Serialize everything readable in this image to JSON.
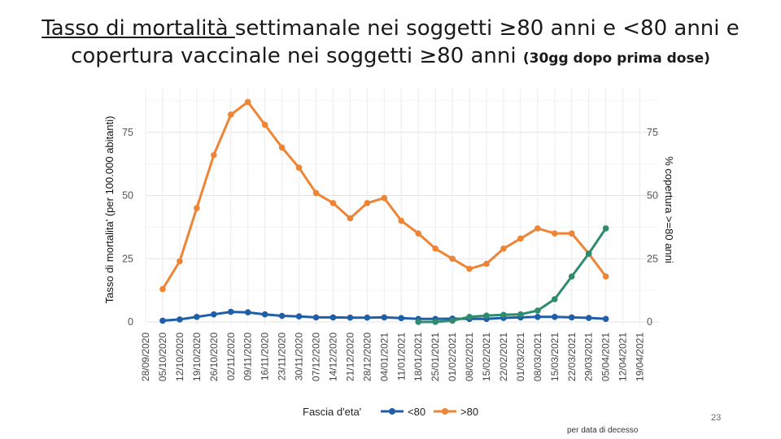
{
  "slide": {
    "title_part1": "Tasso di mortalità ",
    "title_part2": "settimanale nei soggetti ≥80 anni e <80 anni e",
    "title_line2": "copertura vaccinale nei soggetti ≥80 anni ",
    "title_note": "(30gg dopo prima dose)",
    "page_number": "23"
  },
  "chart_data": {
    "type": "line",
    "title": "Tasso di mortalità settimanale nei soggetti ≥80 anni e <80 anni e copertura vaccinale nei soggetti ≥80 anni (30gg dopo prima dose)",
    "ylabel_left": "Tasso di mortalita' (per 100.000 abitanti)",
    "ylabel_right": "% copertura >=80 anni",
    "ylim": [
      0,
      90
    ],
    "yticks": [
      0,
      25,
      50,
      75
    ],
    "categories": [
      "28/09/2020",
      "05/10/2020",
      "12/10/2020",
      "19/10/2020",
      "26/10/2020",
      "02/11/2020",
      "09/11/2020",
      "16/11/2020",
      "23/11/2020",
      "30/11/2020",
      "07/12/2020",
      "14/12/2020",
      "21/12/2020",
      "28/12/2020",
      "04/01/2021",
      "11/01/2021",
      "18/01/2021",
      "25/01/2021",
      "01/02/2021",
      "08/02/2021",
      "15/02/2021",
      "22/02/2021",
      "01/03/2021",
      "08/03/2021",
      "15/03/2021",
      "22/03/2021",
      "29/03/2021",
      "05/04/2021",
      "12/04/2021",
      "19/04/2021"
    ],
    "series": [
      {
        "name": "<80",
        "color": "#1f5fa8",
        "values": [
          null,
          0.5,
          1,
          2,
          3,
          4,
          3.8,
          3,
          2.4,
          2.2,
          1.8,
          1.8,
          1.7,
          1.7,
          1.8,
          1.5,
          1.2,
          1.2,
          1.3,
          1.2,
          1.2,
          1.6,
          1.8,
          2,
          2,
          1.8,
          1.6,
          1.2,
          null,
          null
        ]
      },
      {
        "name": ">80",
        "color": "#ee8536",
        "values": [
          null,
          13,
          24,
          45,
          66,
          82,
          87,
          78,
          69,
          61,
          51,
          47,
          41,
          47,
          49,
          40,
          35,
          29,
          25,
          21,
          23,
          29,
          33,
          37,
          35,
          35,
          27,
          18,
          null,
          null
        ]
      },
      {
        "name": "% copertura >=80 anni",
        "axis": "right",
        "color": "#2e8b6e",
        "values": [
          null,
          null,
          null,
          null,
          null,
          null,
          null,
          null,
          null,
          null,
          null,
          null,
          null,
          null,
          null,
          null,
          0,
          0,
          0.5,
          2,
          2.5,
          2.8,
          3,
          4.5,
          9,
          18,
          27,
          37,
          null,
          null
        ]
      }
    ],
    "legend": {
      "title": "Fascia d'eta'",
      "position": "bottom"
    },
    "caption": "per data di decesso"
  }
}
